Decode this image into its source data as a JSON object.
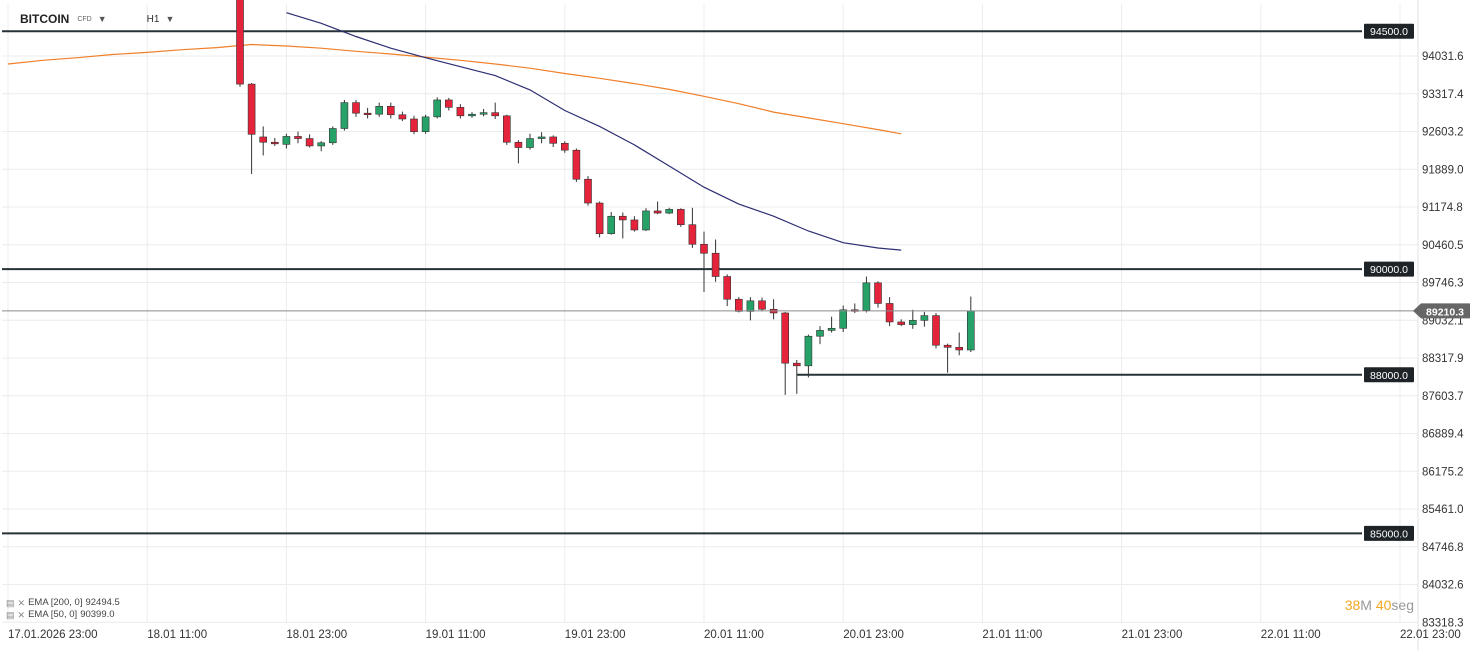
{
  "header": {
    "symbol": "BITCOIN",
    "symbol_type": "CFD",
    "timeframe": "H1"
  },
  "legend": [
    {
      "label": "EMA [200, 0]",
      "value": "92494.5"
    },
    {
      "label": "EMA [50, 0]",
      "value": "90399.0"
    }
  ],
  "countdown": {
    "minutes": "38",
    "min_unit": "M",
    "seconds": "40",
    "sec_unit": "seg"
  },
  "current_price": "89210.3",
  "price_ticks": [
    "94031.6",
    "93317.4",
    "92603.2",
    "91889.0",
    "91174.8",
    "90460.5",
    "89746.3",
    "89032.1",
    "88317.9",
    "87603.7",
    "86889.4",
    "86175.2",
    "85461.0",
    "84746.8",
    "84032.6",
    "83318.3"
  ],
  "time_ticks": [
    "17.01.2026  23:00",
    "18.01  11:00",
    "18.01  23:00",
    "19.01  11:00",
    "19.01  23:00",
    "20.01  11:00",
    "20.01  23:00",
    "21.01  11:00",
    "21.01  23:00",
    "22.01  11:00",
    "22.01  23:00"
  ],
  "levels": [
    "94500.0",
    "90000.0",
    "88000.0",
    "85000.0"
  ],
  "colors": {
    "bull": "#26a269",
    "bear": "#e5243b",
    "ema200": "#f07f2a",
    "ema50": "#2c2e72",
    "level": "#263238"
  },
  "chart_data": {
    "type": "candlestick",
    "y_axis": {
      "ticks": [
        94031.6,
        93317.4,
        92603.2,
        91889.0,
        91174.8,
        90460.5,
        89746.3,
        89032.1,
        88317.9,
        87603.7,
        86889.4,
        86175.2,
        85461.0,
        84746.8,
        84032.6,
        83318.3
      ]
    },
    "x_axis": {
      "tick_labels": [
        "17.01.2026 23:00",
        "18.01 11:00",
        "18.01 23:00",
        "19.01 11:00",
        "19.01 23:00",
        "20.01 11:00",
        "20.01 23:00",
        "21.01 11:00",
        "21.01 23:00",
        "22.01 11:00",
        "22.01 23:00"
      ]
    },
    "horizontal_levels": [
      94500.0,
      90000.0,
      88000.0,
      85000.0
    ],
    "current_price": 89210.3,
    "ema200": [
      [
        0,
        93880
      ],
      [
        3,
        93950
      ],
      [
        6,
        94000
      ],
      [
        9,
        94060
      ],
      [
        12,
        94100
      ],
      [
        15,
        94150
      ],
      [
        18,
        94190
      ],
      [
        20,
        94230
      ],
      [
        21,
        94250
      ],
      [
        24,
        94220
      ],
      [
        27,
        94180
      ],
      [
        30,
        94120
      ],
      [
        33,
        94070
      ],
      [
        36,
        94010
      ],
      [
        39,
        93950
      ],
      [
        42,
        93880
      ],
      [
        45,
        93800
      ],
      [
        48,
        93700
      ],
      [
        51,
        93610
      ],
      [
        54,
        93510
      ],
      [
        57,
        93400
      ],
      [
        60,
        93270
      ],
      [
        63,
        93130
      ],
      [
        66,
        92970
      ],
      [
        69,
        92860
      ],
      [
        72,
        92750
      ],
      [
        75,
        92640
      ],
      [
        77,
        92560
      ]
    ],
    "ema50": [
      [
        24,
        94850
      ],
      [
        27,
        94650
      ],
      [
        30,
        94400
      ],
      [
        33,
        94180
      ],
      [
        36,
        94000
      ],
      [
        39,
        93830
      ],
      [
        42,
        93660
      ],
      [
        45,
        93390
      ],
      [
        48,
        93000
      ],
      [
        51,
        92700
      ],
      [
        54,
        92350
      ],
      [
        57,
        91950
      ],
      [
        60,
        91550
      ],
      [
        63,
        91230
      ],
      [
        66,
        91000
      ],
      [
        69,
        90720
      ],
      [
        72,
        90500
      ],
      [
        75,
        90400
      ],
      [
        77,
        90360
      ]
    ],
    "candles": [
      {
        "t": 20,
        "o": 95400,
        "h": 95550,
        "l": 93450,
        "c": 93500
      },
      {
        "t": 21,
        "o": 93500,
        "h": 93520,
        "l": 91800,
        "c": 92550
      },
      {
        "t": 22,
        "o": 92500,
        "h": 92700,
        "l": 92150,
        "c": 92400
      },
      {
        "t": 23,
        "o": 92400,
        "h": 92480,
        "l": 92330,
        "c": 92370
      },
      {
        "t": 24,
        "o": 92360,
        "h": 92560,
        "l": 92280,
        "c": 92510
      },
      {
        "t": 25,
        "o": 92510,
        "h": 92600,
        "l": 92380,
        "c": 92470
      },
      {
        "t": 26,
        "o": 92470,
        "h": 92550,
        "l": 92300,
        "c": 92330
      },
      {
        "t": 27,
        "o": 92330,
        "h": 92420,
        "l": 92230,
        "c": 92390
      },
      {
        "t": 28,
        "o": 92390,
        "h": 92700,
        "l": 92350,
        "c": 92660
      },
      {
        "t": 29,
        "o": 92660,
        "h": 93200,
        "l": 92620,
        "c": 93150
      },
      {
        "t": 30,
        "o": 93150,
        "h": 93200,
        "l": 92880,
        "c": 92950
      },
      {
        "t": 31,
        "o": 92950,
        "h": 93050,
        "l": 92850,
        "c": 92930
      },
      {
        "t": 32,
        "o": 92930,
        "h": 93150,
        "l": 92880,
        "c": 93080
      },
      {
        "t": 33,
        "o": 93080,
        "h": 93150,
        "l": 92850,
        "c": 92920
      },
      {
        "t": 34,
        "o": 92920,
        "h": 92980,
        "l": 92800,
        "c": 92840
      },
      {
        "t": 35,
        "o": 92840,
        "h": 92900,
        "l": 92550,
        "c": 92600
      },
      {
        "t": 36,
        "o": 92600,
        "h": 92920,
        "l": 92560,
        "c": 92880
      },
      {
        "t": 37,
        "o": 92880,
        "h": 93250,
        "l": 92850,
        "c": 93200
      },
      {
        "t": 38,
        "o": 93200,
        "h": 93240,
        "l": 93000,
        "c": 93060
      },
      {
        "t": 39,
        "o": 93060,
        "h": 93120,
        "l": 92850,
        "c": 92900
      },
      {
        "t": 40,
        "o": 92900,
        "h": 92970,
        "l": 92860,
        "c": 92930
      },
      {
        "t": 41,
        "o": 92930,
        "h": 93030,
        "l": 92890,
        "c": 92960
      },
      {
        "t": 42,
        "o": 92960,
        "h": 93150,
        "l": 92840,
        "c": 92900
      },
      {
        "t": 43,
        "o": 92900,
        "h": 92920,
        "l": 92350,
        "c": 92400
      },
      {
        "t": 44,
        "o": 92400,
        "h": 92440,
        "l": 92000,
        "c": 92300
      },
      {
        "t": 45,
        "o": 92300,
        "h": 92560,
        "l": 92260,
        "c": 92470
      },
      {
        "t": 46,
        "o": 92470,
        "h": 92590,
        "l": 92380,
        "c": 92500
      },
      {
        "t": 47,
        "o": 92500,
        "h": 92530,
        "l": 92310,
        "c": 92380
      },
      {
        "t": 48,
        "o": 92380,
        "h": 92420,
        "l": 92200,
        "c": 92250
      },
      {
        "t": 49,
        "o": 92250,
        "h": 92280,
        "l": 91650,
        "c": 91700
      },
      {
        "t": 50,
        "o": 91700,
        "h": 91760,
        "l": 91200,
        "c": 91250
      },
      {
        "t": 51,
        "o": 91250,
        "h": 91280,
        "l": 90600,
        "c": 90670
      },
      {
        "t": 52,
        "o": 90670,
        "h": 91080,
        "l": 90650,
        "c": 91000
      },
      {
        "t": 53,
        "o": 91000,
        "h": 91070,
        "l": 90580,
        "c": 90930
      },
      {
        "t": 54,
        "o": 90930,
        "h": 91000,
        "l": 90710,
        "c": 90740
      },
      {
        "t": 55,
        "o": 90740,
        "h": 91150,
        "l": 90720,
        "c": 91100
      },
      {
        "t": 56,
        "o": 91100,
        "h": 91280,
        "l": 91040,
        "c": 91060
      },
      {
        "t": 57,
        "o": 91060,
        "h": 91160,
        "l": 91040,
        "c": 91130
      },
      {
        "t": 58,
        "o": 91130,
        "h": 91150,
        "l": 90800,
        "c": 90840
      },
      {
        "t": 59,
        "o": 90840,
        "h": 91160,
        "l": 90400,
        "c": 90470
      },
      {
        "t": 60,
        "o": 90470,
        "h": 90710,
        "l": 89570,
        "c": 90300
      },
      {
        "t": 61,
        "o": 90300,
        "h": 90560,
        "l": 89760,
        "c": 89860
      },
      {
        "t": 62,
        "o": 89860,
        "h": 89900,
        "l": 89300,
        "c": 89430
      },
      {
        "t": 63,
        "o": 89430,
        "h": 89470,
        "l": 89180,
        "c": 89200
      },
      {
        "t": 64,
        "o": 89200,
        "h": 89470,
        "l": 89030,
        "c": 89400
      },
      {
        "t": 65,
        "o": 89400,
        "h": 89460,
        "l": 89200,
        "c": 89240
      },
      {
        "t": 66,
        "o": 89240,
        "h": 89430,
        "l": 89050,
        "c": 89170
      },
      {
        "t": 67,
        "o": 89170,
        "h": 89190,
        "l": 87620,
        "c": 88220
      },
      {
        "t": 68,
        "o": 88220,
        "h": 88280,
        "l": 87640,
        "c": 88170
      },
      {
        "t": 69,
        "o": 88170,
        "h": 88760,
        "l": 87950,
        "c": 88730
      },
      {
        "t": 70,
        "o": 88730,
        "h": 88920,
        "l": 88580,
        "c": 88840
      },
      {
        "t": 71,
        "o": 88840,
        "h": 89100,
        "l": 88800,
        "c": 88880
      },
      {
        "t": 72,
        "o": 88880,
        "h": 89310,
        "l": 88810,
        "c": 89230
      },
      {
        "t": 73,
        "o": 89230,
        "h": 89350,
        "l": 89170,
        "c": 89220
      },
      {
        "t": 74,
        "o": 89220,
        "h": 89860,
        "l": 89180,
        "c": 89740
      },
      {
        "t": 75,
        "o": 89740,
        "h": 89770,
        "l": 89270,
        "c": 89350
      },
      {
        "t": 76,
        "o": 89350,
        "h": 89470,
        "l": 88920,
        "c": 89000
      },
      {
        "t": 77,
        "o": 89000,
        "h": 89050,
        "l": 88920,
        "c": 88950
      },
      {
        "t": 78,
        "o": 88950,
        "h": 89230,
        "l": 88870,
        "c": 89030
      },
      {
        "t": 79,
        "o": 89030,
        "h": 89190,
        "l": 88910,
        "c": 89120
      },
      {
        "t": 80,
        "o": 89120,
        "h": 89170,
        "l": 88500,
        "c": 88560
      },
      {
        "t": 81,
        "o": 88560,
        "h": 88590,
        "l": 88040,
        "c": 88520
      },
      {
        "t": 82,
        "o": 88520,
        "h": 88800,
        "l": 88370,
        "c": 88470
      },
      {
        "t": 83,
        "o": 88470,
        "h": 89480,
        "l": 88430,
        "c": 89210
      }
    ]
  }
}
